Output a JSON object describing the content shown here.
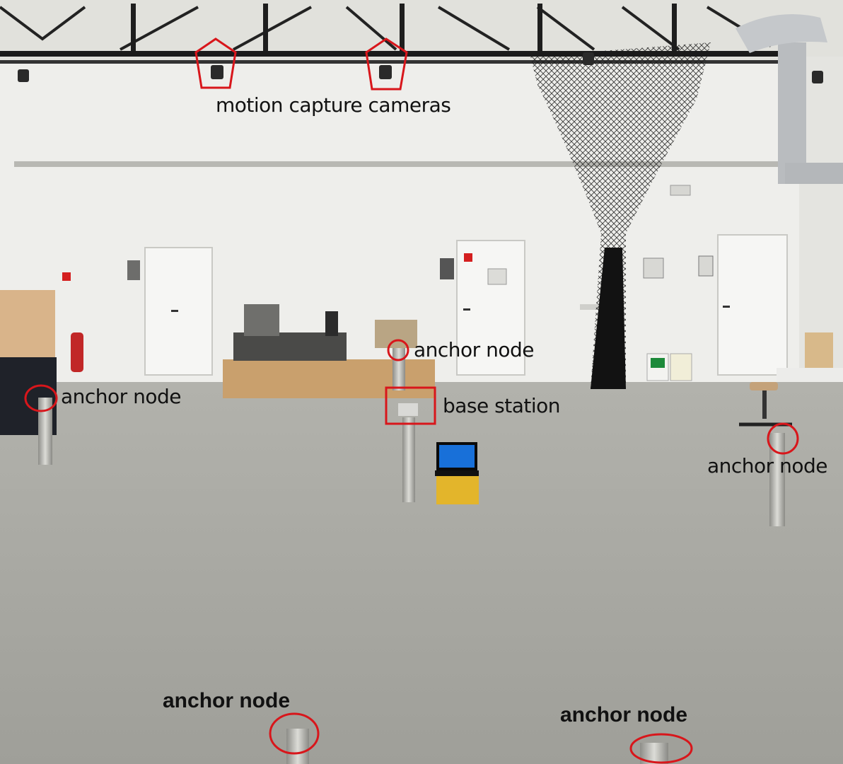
{
  "labels": {
    "cameras": "motion capture cameras",
    "anchor_left": "anchor node",
    "anchor_center": "anchor node",
    "anchor_right": "anchor node",
    "anchor_bottom_left": "anchor node",
    "anchor_bottom_right": "anchor node",
    "base_station": "base station"
  },
  "colors": {
    "marker": "#d8161b",
    "floor": "#a7a7a0",
    "wall": "#efefec",
    "ceiling": "#e3e3df",
    "net": "#1a1a1a"
  }
}
